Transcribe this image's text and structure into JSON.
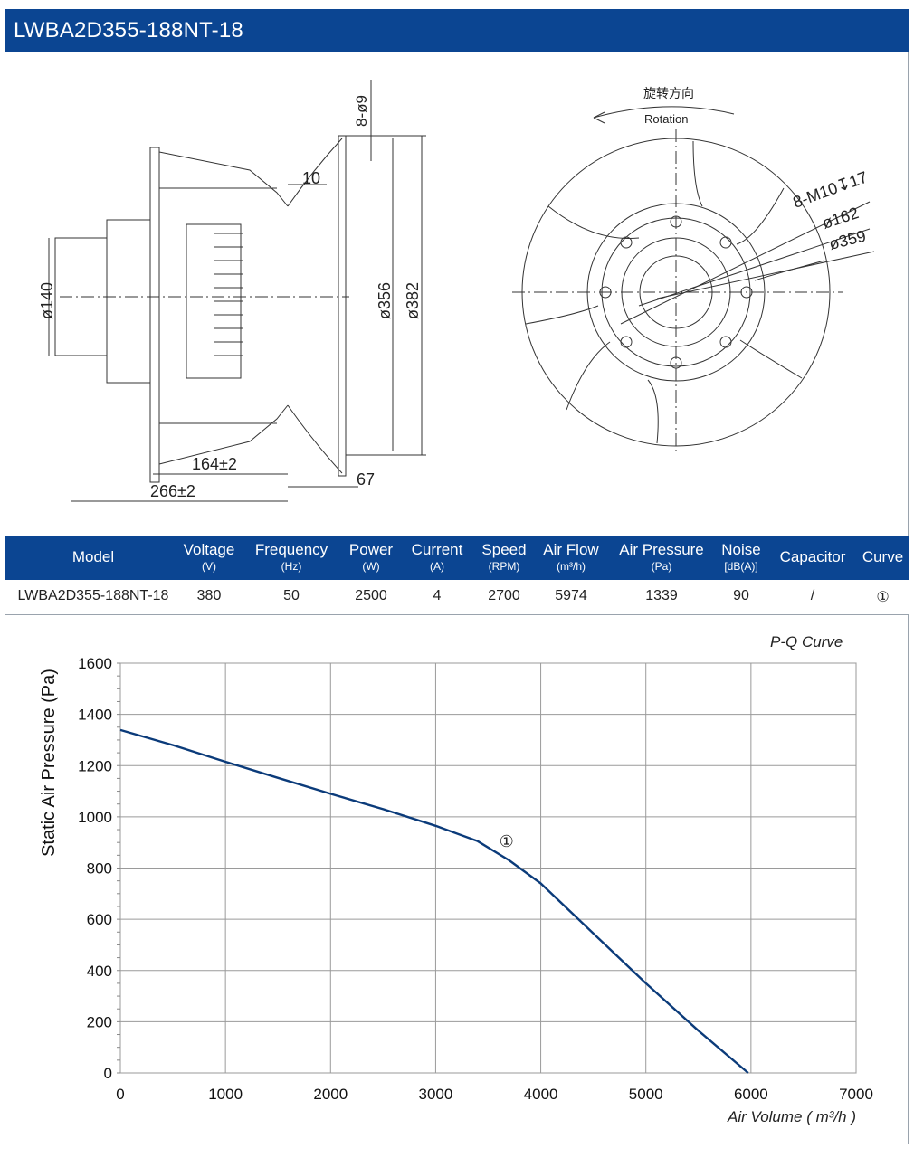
{
  "header": {
    "title": "LWBA2D355-188NT-18"
  },
  "drawing": {
    "dims": {
      "hole_spec": "8-ø9",
      "d10": "10",
      "d140": "ø140",
      "d356": "ø356",
      "d382": "ø382",
      "d164": "164±2",
      "d266": "266±2",
      "d67": "67",
      "bolt_spec": "8-M10↧17",
      "d162": "ø162",
      "d359": "ø359"
    },
    "rotation_cn": "旋转方向",
    "rotation_en": "Rotation"
  },
  "specs": {
    "columns": [
      {
        "label": "Model",
        "unit": ""
      },
      {
        "label": "Voltage",
        "unit": "(V)"
      },
      {
        "label": "Frequency",
        "unit": "(Hz)"
      },
      {
        "label": "Power",
        "unit": "(W)"
      },
      {
        "label": "Current",
        "unit": "(A)"
      },
      {
        "label": "Speed",
        "unit": "(RPM)"
      },
      {
        "label": "Air Flow",
        "unit": "(m³/h)"
      },
      {
        "label": "Air Pressure",
        "unit": "(Pa)"
      },
      {
        "label": "Noise",
        "unit": "[dB(A)]"
      },
      {
        "label": "Capacitor",
        "unit": ""
      },
      {
        "label": "Curve",
        "unit": ""
      }
    ],
    "row": [
      "LWBA2D355-188NT-18",
      "380",
      "50",
      "2500",
      "4",
      "2700",
      "5974",
      "1339",
      "90",
      "/",
      "①"
    ]
  },
  "chart_data": {
    "type": "line",
    "title": "P-Q Curve",
    "xlabel": "Air Volume ( m³/h )",
    "ylabel": "Static Air Pressure (Pa)",
    "xlim": [
      0,
      7000
    ],
    "ylim": [
      0,
      1600
    ],
    "xticks": [
      "0",
      "1000",
      "2000",
      "3000",
      "4000",
      "5000",
      "6000",
      "7000"
    ],
    "yticks": [
      "0",
      "200",
      "400",
      "600",
      "800",
      "1000",
      "1200",
      "1400",
      "1600"
    ],
    "grid": true,
    "series": [
      {
        "name": "①",
        "color": "#0b3b7a",
        "x": [
          0,
          500,
          1000,
          1500,
          2000,
          2500,
          3000,
          3400,
          3700,
          4000,
          4500,
          5000,
          5500,
          5974
        ],
        "y": [
          1339,
          1280,
          1215,
          1152,
          1090,
          1030,
          965,
          905,
          830,
          740,
          545,
          350,
          165,
          0
        ]
      }
    ],
    "annotation": {
      "text": "①",
      "x": 3700,
      "y": 905
    }
  }
}
